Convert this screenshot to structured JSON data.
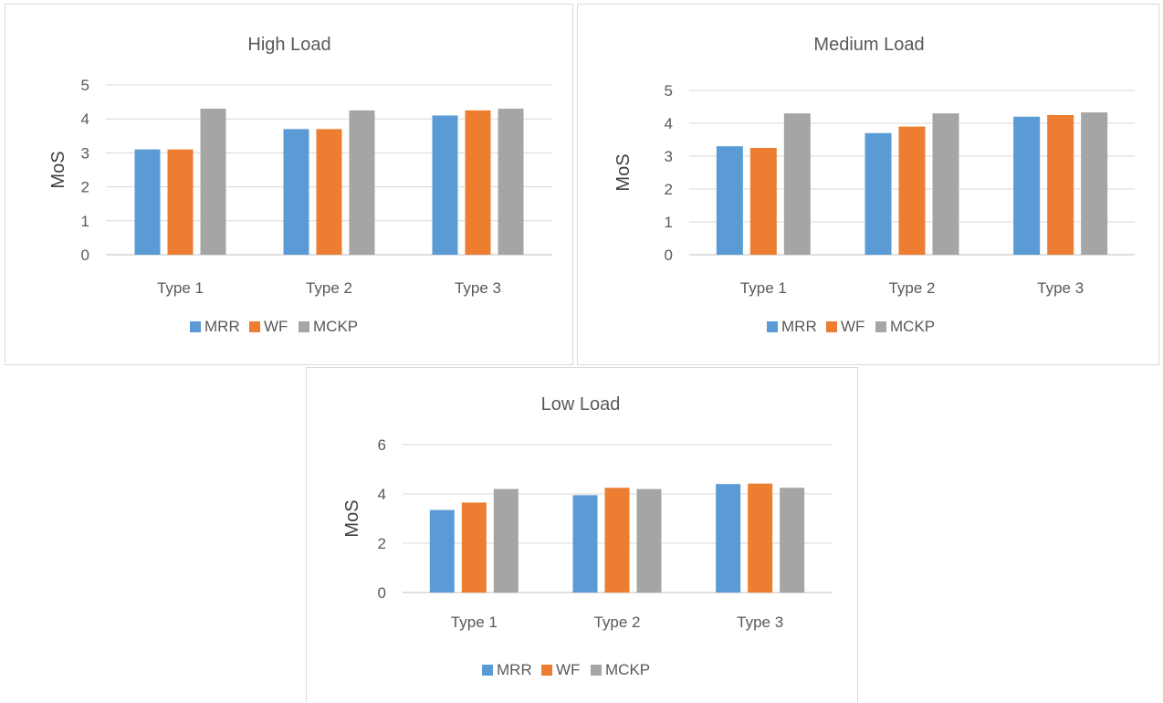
{
  "chart_data": [
    {
      "type": "bar",
      "title": "High Load",
      "ylabel": "MoS",
      "xlabel": "",
      "ylim": [
        0,
        5
      ],
      "yticks": [
        0,
        1,
        2,
        3,
        4,
        5
      ],
      "categories": [
        "Type 1",
        "Type 2",
        "Type 3"
      ],
      "series": [
        {
          "name": "MRR",
          "color": "#5b9bd5",
          "values": [
            3.1,
            3.7,
            4.1
          ]
        },
        {
          "name": "WF",
          "color": "#ed7d31",
          "values": [
            3.1,
            3.7,
            4.25
          ]
        },
        {
          "name": "MCKP",
          "color": "#a5a5a5",
          "values": [
            4.3,
            4.25,
            4.3
          ]
        }
      ],
      "grid": true,
      "legend_position": "bottom"
    },
    {
      "type": "bar",
      "title": "Medium Load",
      "ylabel": "MoS",
      "xlabel": "",
      "ylim": [
        0,
        5
      ],
      "yticks": [
        0,
        1,
        2,
        3,
        4,
        5
      ],
      "categories": [
        "Type 1",
        "Type 2",
        "Type 3"
      ],
      "series": [
        {
          "name": "MRR",
          "color": "#5b9bd5",
          "values": [
            3.3,
            3.7,
            4.2
          ]
        },
        {
          "name": "WF",
          "color": "#ed7d31",
          "values": [
            3.25,
            3.9,
            4.25
          ]
        },
        {
          "name": "MCKP",
          "color": "#a5a5a5",
          "values": [
            4.3,
            4.3,
            4.33
          ]
        }
      ],
      "grid": true,
      "legend_position": "bottom"
    },
    {
      "type": "bar",
      "title": "Low Load",
      "ylabel": "MoS",
      "xlabel": "",
      "ylim": [
        0,
        6
      ],
      "yticks": [
        0,
        2,
        4,
        6
      ],
      "categories": [
        "Type 1",
        "Type 2",
        "Type 3"
      ],
      "series": [
        {
          "name": "MRR",
          "color": "#5b9bd5",
          "values": [
            3.35,
            3.95,
            4.4
          ]
        },
        {
          "name": "WF",
          "color": "#ed7d31",
          "values": [
            3.65,
            4.25,
            4.42
          ]
        },
        {
          "name": "MCKP",
          "color": "#a5a5a5",
          "values": [
            4.2,
            4.2,
            4.25
          ]
        }
      ],
      "grid": true,
      "legend_position": "bottom"
    }
  ]
}
